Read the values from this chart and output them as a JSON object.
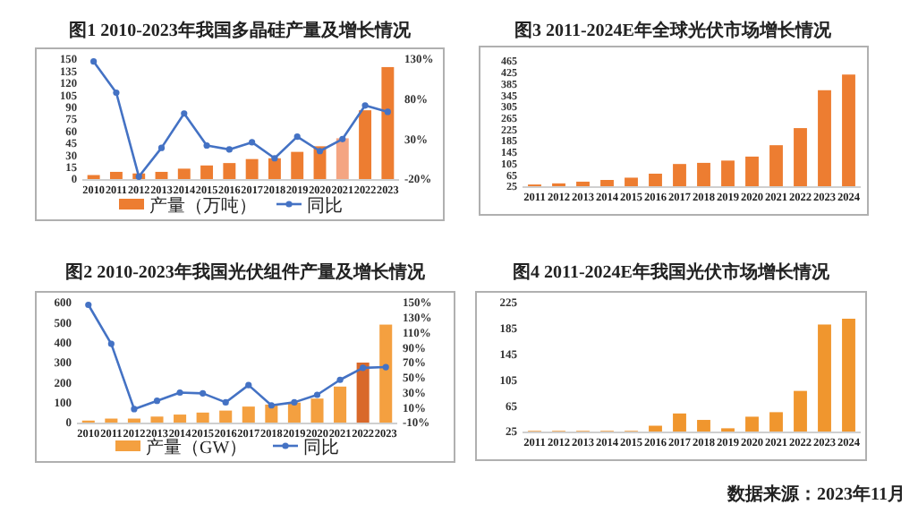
{
  "chart_data": [
    {
      "type": "bar",
      "title": "图1 2010-2023年我国多晶硅产量及增长情况",
      "categories": [
        "2010",
        "2011",
        "2012",
        "2013",
        "2014",
        "2015",
        "2016",
        "2017",
        "2018",
        "2019",
        "2020",
        "2021",
        "2022",
        "2023"
      ],
      "series": [
        {
          "name": "产量（万吨）",
          "type": "bar",
          "colors": [
            "#ed7d31",
            "#ed7d31",
            "#ed7d31",
            "#ed7d31",
            "#ed7d31",
            "#ed7d31",
            "#ed7d31",
            "#ed7d31",
            "#ed7d31",
            "#ed7d31",
            "#ed7d31",
            "#f4a582",
            "#ed7d31",
            "#ed7d31"
          ],
          "values": [
            5,
            9,
            7,
            9,
            13,
            17,
            20,
            25,
            26,
            34,
            41,
            51,
            86,
            140
          ]
        },
        {
          "name": "同比",
          "type": "line",
          "axis": "y2",
          "color": "#4472c4",
          "values": [
            127,
            88,
            -17,
            19,
            62,
            22,
            17,
            26,
            6,
            33,
            15,
            30,
            72,
            64
          ]
        }
      ],
      "ylim": [
        0,
        150
      ],
      "yticks": [
        0,
        15,
        30,
        45,
        60,
        75,
        90,
        105,
        120,
        135,
        150
      ],
      "y2lim": [
        -20,
        130
      ],
      "y2ticks": [
        {
          "value": -20,
          "label": "-20%"
        },
        {
          "value": 30,
          "label": "30%"
        },
        {
          "value": 80,
          "label": "80%"
        },
        {
          "value": 130,
          "label": "130%"
        }
      ],
      "legend": "bottom",
      "marker": "circle"
    },
    {
      "type": "bar",
      "title": "图3 2011-2024E年全球光伏市场增长情况",
      "categories": [
        "2011",
        "2012",
        "2013",
        "2014",
        "2015",
        "2016",
        "2017",
        "2018",
        "2019",
        "2020",
        "2021",
        "2022",
        "2023",
        "2024"
      ],
      "color": "#ed7d31",
      "values": [
        31,
        35,
        41,
        47,
        55,
        69,
        103,
        107,
        115,
        129,
        169,
        229,
        362,
        417
      ],
      "ylim": [
        25,
        465
      ],
      "yticks": [
        25,
        65,
        105,
        145,
        185,
        225,
        265,
        305,
        345,
        385,
        425,
        465
      ]
    },
    {
      "type": "bar",
      "title": "图2 2010-2023年我国光伏组件产量及增长情况",
      "categories": [
        "2010",
        "2011",
        "2012",
        "2013",
        "2014",
        "2015",
        "2016",
        "2017",
        "2018",
        "2019",
        "2020",
        "2021",
        "2022",
        "2023"
      ],
      "series": [
        {
          "name": "产量（GW）",
          "type": "bar",
          "colors": [
            "#f4a040",
            "#f4a040",
            "#f4a040",
            "#f4a040",
            "#f4a040",
            "#f4a040",
            "#f4a040",
            "#f4a040",
            "#f4a040",
            "#f4a040",
            "#f4a040",
            "#f4a040",
            "#d9692a",
            "#f4a040"
          ],
          "values": [
            10,
            20,
            20,
            30,
            40,
            50,
            60,
            80,
            90,
            100,
            120,
            180,
            300,
            490
          ]
        },
        {
          "name": "同比",
          "type": "line",
          "axis": "y2",
          "color": "#4472c4",
          "values": [
            147,
            95,
            8,
            19,
            30,
            29,
            17,
            40,
            13,
            17,
            27,
            47,
            63,
            64
          ]
        }
      ],
      "ylim": [
        0,
        600
      ],
      "yticks": [
        0,
        100,
        200,
        300,
        400,
        500,
        600
      ],
      "y2lim": [
        -10,
        150
      ],
      "y2ticks": [
        {
          "value": -10,
          "label": "-10%"
        },
        {
          "value": 10,
          "label": "10%"
        },
        {
          "value": 30,
          "label": "30%"
        },
        {
          "value": 50,
          "label": "50%"
        },
        {
          "value": 70,
          "label": "70%"
        },
        {
          "value": 90,
          "label": "90%"
        },
        {
          "value": 110,
          "label": "110%"
        },
        {
          "value": 130,
          "label": "130%"
        },
        {
          "value": 150,
          "label": "150%"
        }
      ],
      "legend": "bottom",
      "marker": "circle"
    },
    {
      "type": "bar",
      "title": "图4 2011-2024E年我国光伏市场增长情况",
      "categories": [
        "2011",
        "2012",
        "2013",
        "2014",
        "2015",
        "2016",
        "2017",
        "2018",
        "2019",
        "2020",
        "2021",
        "2022",
        "2023",
        "2024"
      ],
      "color": "#f0962e",
      "values": [
        26,
        26,
        26,
        26,
        26,
        34,
        53,
        43,
        30,
        48,
        55,
        88,
        191,
        200
      ],
      "ylim": [
        25,
        225
      ],
      "yticks": [
        25,
        65,
        105,
        145,
        185,
        225
      ],
      "annotations": [
        "数据来源：2023年11月"
      ]
    }
  ]
}
